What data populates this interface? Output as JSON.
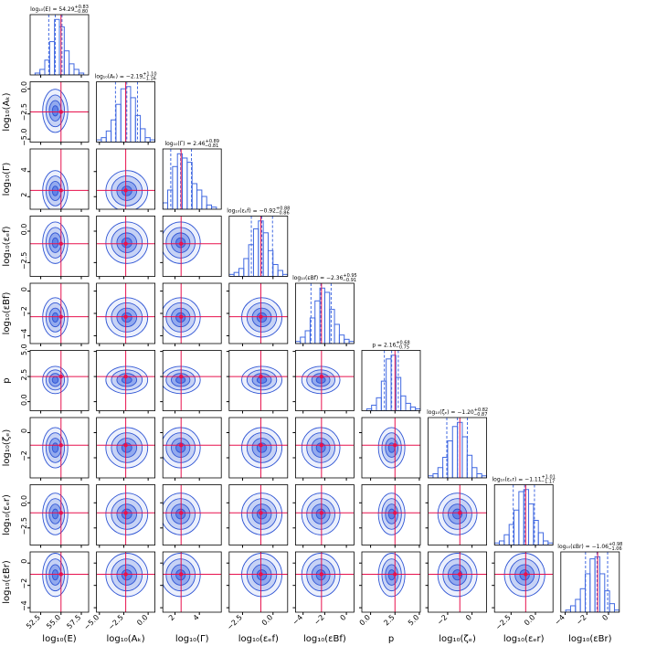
{
  "chart_data": {
    "type": "corner",
    "truth_color": "#e8114d",
    "hist_color": "#4169e1",
    "contour_color": "#2f55d4",
    "params": [
      {
        "label": "log₁₀(E)",
        "title": "log₁₀(E) = 54.29",
        "upper": "+0.83",
        "lower": "−0.80",
        "quantiles": [
          53.49,
          54.29,
          55.12
        ],
        "truth": 55.0,
        "lim": [
          51.2,
          58.4
        ],
        "ticks": [
          52.5,
          {
            "value": 55,
            "label": "55.0"
          },
          57.5
        ],
        "bins": [
          51.2,
          51.8,
          52.4,
          53.0,
          53.6,
          54.2,
          54.8,
          55.4,
          56.0,
          56.6,
          57.2,
          57.8,
          58.4
        ],
        "counts": [
          0,
          1,
          3,
          8,
          18,
          30,
          26,
          13,
          6,
          3,
          1,
          0
        ]
      },
      {
        "label": "log₁₀(Aₖ)",
        "title": "log₁₀(Aₖ) = −2.19",
        "upper": "+1.10",
        "lower": "−1.16",
        "quantiles": [
          -3.35,
          -2.19,
          -1.09
        ],
        "truth": -2.3,
        "lim": [
          -5.3,
          0.7
        ],
        "ticks": [
          {
            "value": -5,
            "label": "−5.0"
          },
          {
            "value": -2.5,
            "label": "−2.5"
          },
          {
            "value": 0,
            "label": "0.0"
          }
        ],
        "bins": [
          -5.3,
          -4.8,
          -4.3,
          -3.8,
          -3.3,
          -2.8,
          -2.3,
          -1.8,
          -1.3,
          -0.8,
          -0.3,
          0.2,
          0.7
        ],
        "counts": [
          1,
          2,
          5,
          10,
          17,
          24,
          25,
          20,
          12,
          6,
          2,
          1
        ]
      },
      {
        "label": "log₁₀(Γ)",
        "title": "log₁₀(Γ) = 2.46",
        "upper": "+0.89",
        "lower": "−0.81",
        "quantiles": [
          1.65,
          2.46,
          3.35
        ],
        "truth": 2.5,
        "lim": [
          1.0,
          5.8
        ],
        "ticks": [
          2,
          4
        ],
        "bins": [
          1.0,
          1.4,
          1.8,
          2.2,
          2.6,
          3.0,
          3.4,
          3.8,
          4.2,
          4.6,
          5.0,
          5.4,
          5.8
        ],
        "counts": [
          3,
          9,
          20,
          26,
          24,
          22,
          12,
          9,
          6,
          2,
          1,
          0
        ]
      },
      {
        "label": "log₁₀(εₑf)",
        "title": "log₁₀(εₑf) = −0.92",
        "upper": "+0.88",
        "lower": "−0.86",
        "quantiles": [
          -1.78,
          -0.92,
          -0.04
        ],
        "truth": -1.0,
        "lim": [
          -3.6,
          1.2
        ],
        "ticks": [
          {
            "value": -2.5,
            "label": "−2.5"
          },
          {
            "value": 0,
            "label": "0.0"
          }
        ],
        "bins": [
          -3.6,
          -3.2,
          -2.8,
          -2.4,
          -2.0,
          -1.6,
          -1.2,
          -0.8,
          -0.4,
          0,
          0.4,
          0.8,
          1.2
        ],
        "counts": [
          1,
          2,
          4,
          9,
          16,
          24,
          28,
          22,
          13,
          6,
          3,
          1
        ]
      },
      {
        "label": "log₁₀(εBf)",
        "title": "log₁₀(εBf) = −2.36",
        "upper": "+0.95",
        "lower": "−0.91",
        "quantiles": [
          -3.27,
          -2.36,
          -1.41
        ],
        "truth": -2.3,
        "lim": [
          -4.7,
          0.7
        ],
        "ticks": [
          {
            "value": -4,
            "label": "−4"
          },
          {
            "value": -2,
            "label": "−2"
          },
          0
        ],
        "bins": [
          -4.7,
          -4.25,
          -3.8,
          -3.35,
          -2.9,
          -2.45,
          -2.0,
          -1.55,
          -1.1,
          -0.65,
          -0.2,
          0.25,
          0.7
        ],
        "counts": [
          1,
          3,
          6,
          12,
          20,
          26,
          24,
          16,
          9,
          4,
          2,
          1
        ]
      },
      {
        "label": "p",
        "title": "p = 2.16",
        "upper": "+0.68",
        "lower": "−0.75",
        "quantiles": [
          1.41,
          2.16,
          2.84
        ],
        "truth": 2.5,
        "lim": [
          -0.9,
          5.1
        ],
        "ticks": [
          {
            "value": 0,
            "label": "0.0"
          },
          2.5,
          {
            "value": 5,
            "label": "5.0"
          }
        ],
        "bins": [
          -0.9,
          -0.4,
          0.1,
          0.6,
          1.1,
          1.6,
          2.1,
          2.6,
          3.1,
          3.6,
          4.1,
          4.6,
          5.1
        ],
        "counts": [
          0,
          1,
          3,
          7,
          16,
          28,
          30,
          18,
          8,
          4,
          2,
          1
        ]
      },
      {
        "label": "log₁₀(ζₑ)",
        "title": "log₁₀(ζₑ) = −1.20",
        "upper": "+0.82",
        "lower": "−0.87",
        "quantiles": [
          -2.07,
          -1.2,
          -0.38
        ],
        "truth": -1.0,
        "lim": [
          -3.6,
          1.2
        ],
        "ticks": [
          {
            "value": -2,
            "label": "−2"
          },
          0
        ],
        "bins": [
          -3.6,
          -3.2,
          -2.8,
          -2.4,
          -2.0,
          -1.6,
          -1.2,
          -0.8,
          -0.4,
          0,
          0.4,
          0.8,
          1.2
        ],
        "counts": [
          1,
          2,
          5,
          10,
          18,
          25,
          27,
          20,
          11,
          5,
          2,
          1
        ]
      },
      {
        "label": "log₁₀(εₑr)",
        "title": "log₁₀(εₑr) = −1.11",
        "upper": "+1.01",
        "lower": "−1.17",
        "quantiles": [
          -2.28,
          -1.11,
          -0.1
        ],
        "truth": -1.0,
        "lim": [
          -4.2,
          1.8
        ],
        "ticks": [
          {
            "value": -2.5,
            "label": "−2.5"
          },
          {
            "value": 0,
            "label": "0.0"
          }
        ],
        "bins": [
          -4.2,
          -3.7,
          -3.2,
          -2.7,
          -2.2,
          -1.7,
          -1.2,
          -0.7,
          -0.2,
          0.3,
          0.8,
          1.3,
          1.8
        ],
        "counts": [
          1,
          2,
          5,
          10,
          17,
          26,
          27,
          20,
          12,
          6,
          2,
          1
        ]
      },
      {
        "label": "log₁₀(εBr)",
        "title": "log₁₀(εBr) = −1.06",
        "upper": "+0.98",
        "lower": "−1.06",
        "quantiles": [
          -2.12,
          -1.06,
          -0.08
        ],
        "truth": -1.0,
        "lim": [
          -4.4,
          1.0
        ],
        "ticks": [
          {
            "value": -4,
            "label": "−4"
          },
          {
            "value": -2,
            "label": "−2"
          },
          0
        ],
        "bins": [
          -4.4,
          -3.95,
          -3.5,
          -3.05,
          -2.6,
          -2.15,
          -1.7,
          -1.25,
          -0.8,
          -0.35,
          0.1,
          0.55,
          1.0
        ],
        "counts": [
          0,
          1,
          3,
          6,
          11,
          18,
          25,
          26,
          18,
          10,
          4,
          1
        ]
      }
    ]
  }
}
